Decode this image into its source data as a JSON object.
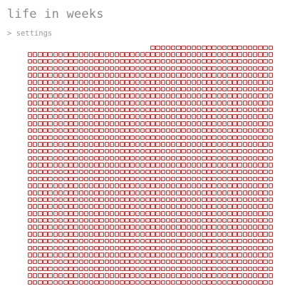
{
  "app": {
    "title": "life in weeks"
  },
  "settings": {
    "label": "> settings"
  },
  "grid": {
    "weeks_per_row": 48,
    "rows": 35,
    "first_row_weeks": 24,
    "lived_color": "#b23a3a",
    "lived_fill": "#f2dede"
  }
}
